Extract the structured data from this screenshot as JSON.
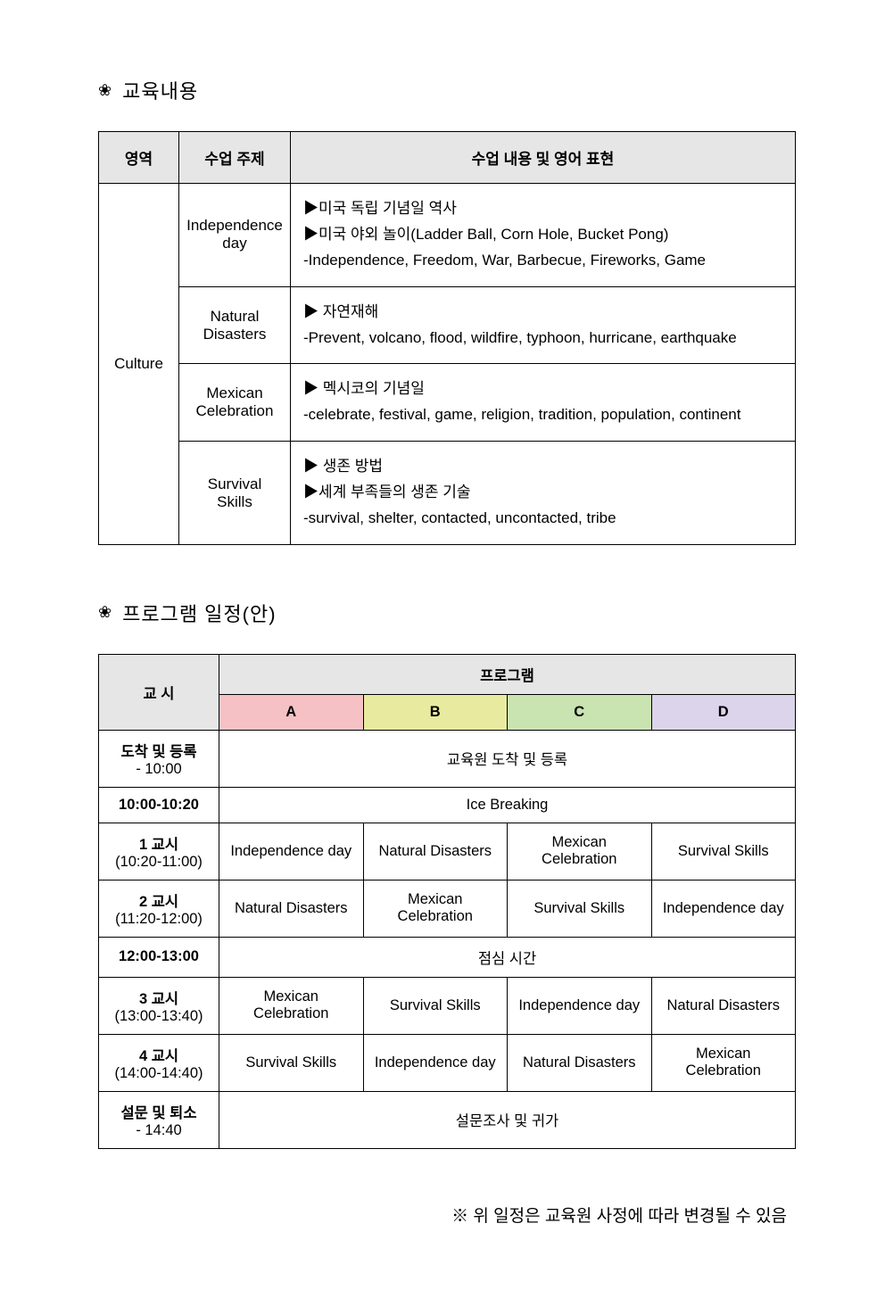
{
  "section1": {
    "icon": "❀",
    "title": "교육내용"
  },
  "content_table": {
    "headers": [
      "영역",
      "수업 주제",
      "수업 내용 및 영어 표현"
    ],
    "area": "Culture",
    "rows": [
      {
        "topic": "Independence day",
        "content": "▶미국 독립 기념일 역사\n▶미국 야외 놀이(Ladder Ball, Corn Hole, Bucket Pong)\n-Independence, Freedom, War, Barbecue, Fireworks, Game"
      },
      {
        "topic": "Natural Disasters",
        "content": "▶ 자연재해\n-Prevent, volcano, flood, wildfire, typhoon, hurricane, earthquake"
      },
      {
        "topic": "Mexican Celebration",
        "content": "▶ 멕시코의 기념일\n-celebrate, festival, game, religion, tradition, population, continent"
      },
      {
        "topic": "Survival Skills",
        "content": "▶ 생존 방법\n▶세계 부족들의 생존 기술\n-survival, shelter, contacted, uncontacted, tribe"
      }
    ]
  },
  "section2": {
    "icon": "❀",
    "title": "프로그램 일정(안)"
  },
  "schedule": {
    "period_header": "교 시",
    "program_header": "프로그램",
    "cols": [
      "A",
      "B",
      "C",
      "D"
    ],
    "col_colors": [
      "#f5c1c5",
      "#e8ea9f",
      "#c9e3b1",
      "#dcd4ea"
    ],
    "rows": [
      {
        "period": "도착 및 등록",
        "sub": "- 10:00",
        "span": true,
        "text": "교육원 도착 및 등록"
      },
      {
        "period": "10:00-10:20",
        "sub": "",
        "span": true,
        "text": "Ice Breaking"
      },
      {
        "period": "1 교시",
        "sub": "(10:20-11:00)",
        "cells": [
          "Independence day",
          "Natural Disasters",
          "Mexican Celebration",
          "Survival Skills"
        ]
      },
      {
        "period": "2 교시",
        "sub": "(11:20-12:00)",
        "cells": [
          "Natural Disasters",
          "Mexican Celebration",
          "Survival Skills",
          "Independence day"
        ]
      },
      {
        "period": "12:00-13:00",
        "sub": "",
        "span": true,
        "text": "점심 시간"
      },
      {
        "period": "3 교시",
        "sub": "(13:00-13:40)",
        "cells": [
          "Mexican Celebration",
          "Survival Skills",
          "Independence day",
          "Natural Disasters"
        ]
      },
      {
        "period": "4 교시",
        "sub": "(14:00-14:40)",
        "cells": [
          "Survival Skills",
          "Independence day",
          "Natural Disasters",
          "Mexican Celebration"
        ]
      },
      {
        "period": "설문 및 퇴소",
        "sub": "- 14:40",
        "span": true,
        "text": "설문조사 및 귀가"
      }
    ]
  },
  "note": "※ 위 일정은 교육원 사정에 따라 변경될 수 있음",
  "style": {
    "background_color": "#ffffff",
    "text_color": "#000000",
    "border_color": "#000000",
    "header_bg": "#e6e6e6",
    "section_title_fontsize": 22,
    "body_fontsize": 16
  }
}
